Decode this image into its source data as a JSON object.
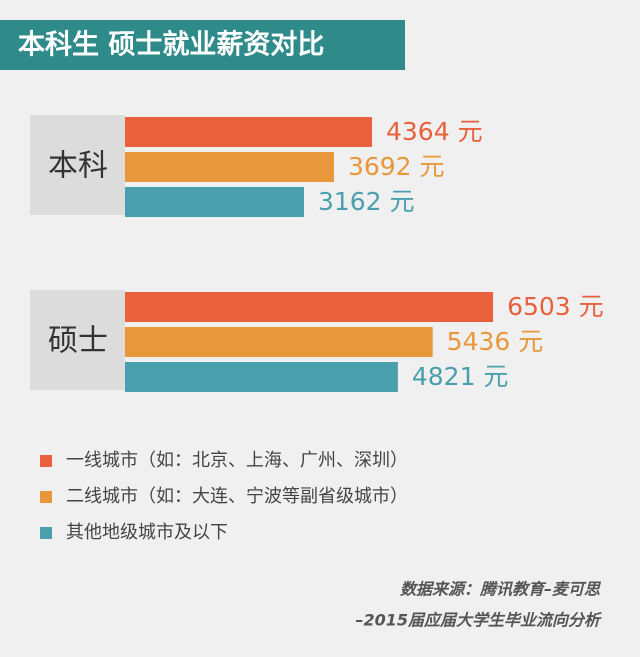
{
  "chart_data": {
    "type": "hbar",
    "title": "本科生 硕士就业薪资对比",
    "categories": [
      "本科",
      "硕士"
    ],
    "series": [
      {
        "name": "一线城市（如：北京、上海、广州、深圳）",
        "color": "#e8613c",
        "values": [
          4364,
          6503
        ],
        "value_labels": [
          "4364 元",
          "6503 元"
        ]
      },
      {
        "name": "二线城市（如：大连、宁波等副省级城市）",
        "color": "#e8973a",
        "values": [
          3692,
          5436
        ],
        "value_labels": [
          "3692 元",
          "5436 元"
        ]
      },
      {
        "name": "其他地级城市及以下",
        "color": "#4a9fac",
        "values": [
          3162,
          4821
        ],
        "value_labels": [
          "3162 元",
          "4821 元"
        ]
      }
    ],
    "source": [
      "数据来源：腾讯教育–麦可思",
      "–2015届应届大学生毕业流向分析"
    ]
  }
}
